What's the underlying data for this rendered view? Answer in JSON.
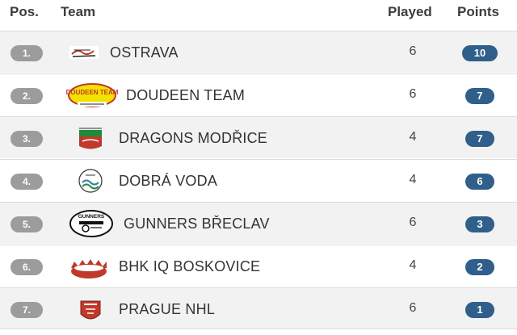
{
  "header": {
    "pos": "Pos.",
    "team": "Team",
    "played": "Played",
    "points": "Points"
  },
  "rows": [
    {
      "pos": "1.",
      "team": "OSTRAVA",
      "played": "6",
      "points": "10",
      "logo": "ostrava-logo"
    },
    {
      "pos": "2.",
      "team": "DOUDEEN TEAM",
      "played": "6",
      "points": "7",
      "logo": "doudeen-team-logo",
      "logo_text": "DOUDEEN TEAM"
    },
    {
      "pos": "3.",
      "team": "DRAGONS MODŘICE",
      "played": "4",
      "points": "7",
      "logo": "dragons-modrice-logo"
    },
    {
      "pos": "4.",
      "team": "DOBRÁ VODA",
      "played": "4",
      "points": "6",
      "logo": "dobra-voda-logo"
    },
    {
      "pos": "5.",
      "team": "GUNNERS BŘECLAV",
      "played": "6",
      "points": "3",
      "logo": "gunners-breclav-logo",
      "logo_text": "GUNNERS"
    },
    {
      "pos": "6.",
      "team": "BHK IQ BOSKOVICE",
      "played": "4",
      "points": "2",
      "logo": "bhk-iq-boskovice-logo"
    },
    {
      "pos": "7.",
      "team": "PRAGUE NHL",
      "played": "6",
      "points": "1",
      "logo": "prague-nhl-logo"
    }
  ],
  "colors": {
    "position_pill": "#9c9c9c",
    "points_pill": "#2f5f8a",
    "alt_row": "#f2f2f2"
  }
}
